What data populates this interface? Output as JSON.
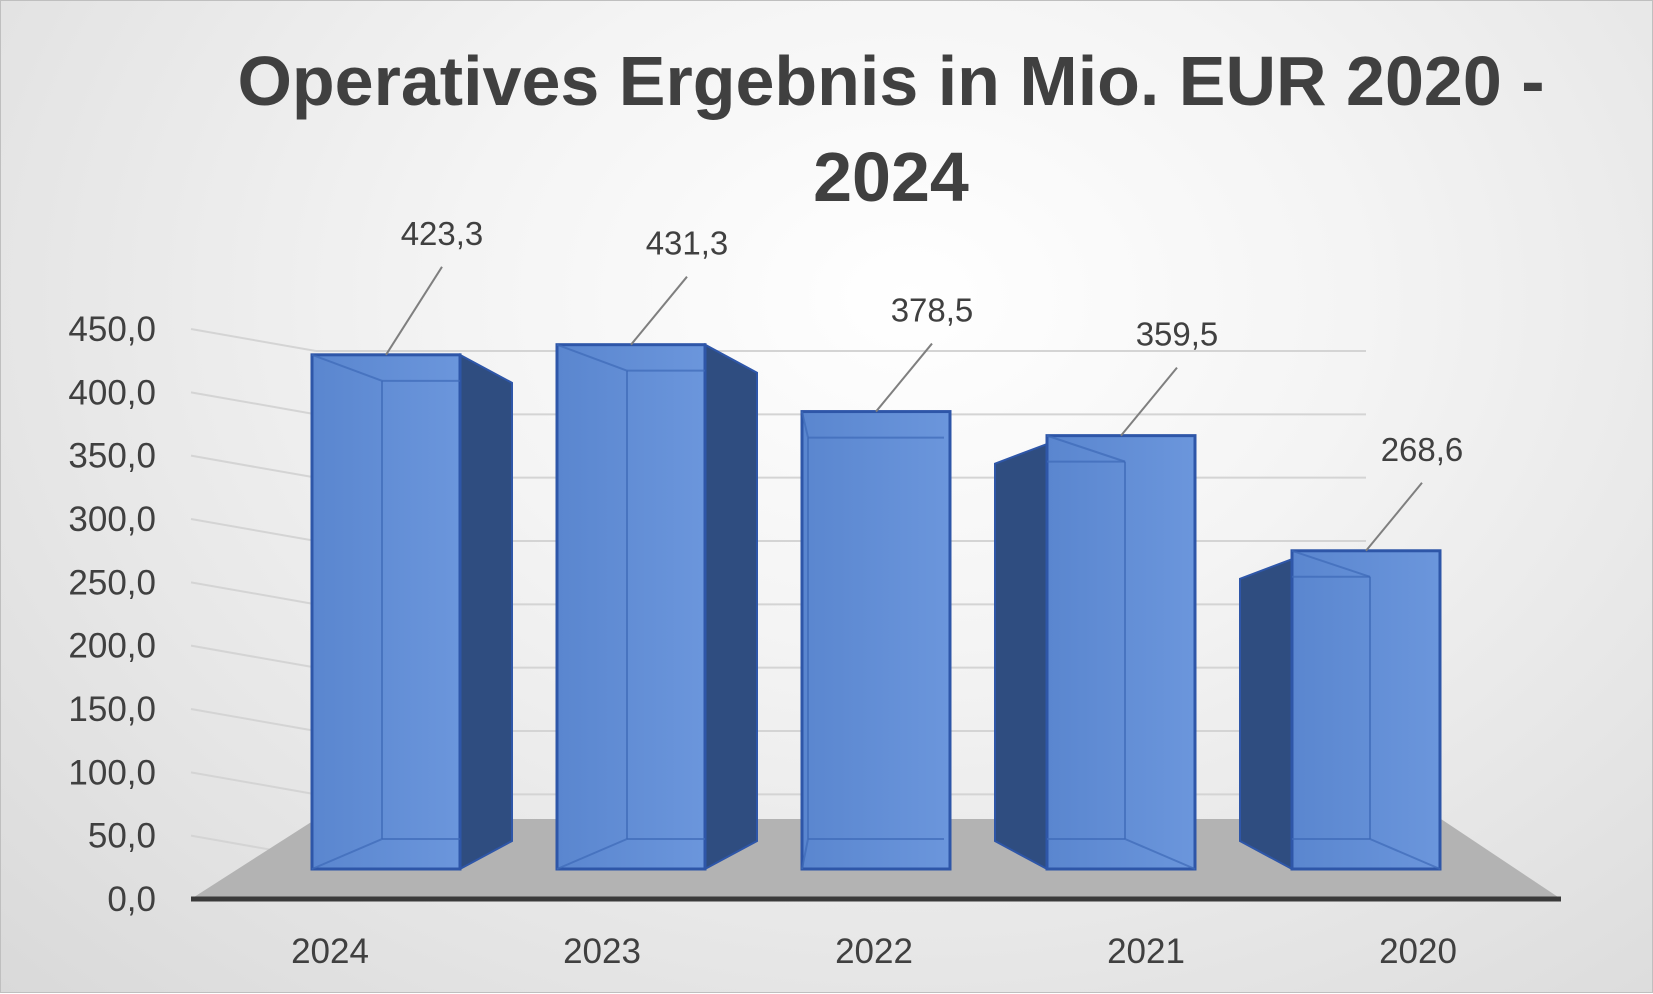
{
  "chart_data": {
    "type": "bar",
    "title": "Operatives Ergebnis in Mio. EUR 2020 - 2024",
    "categories": [
      "2024",
      "2023",
      "2022",
      "2021",
      "2020"
    ],
    "values": [
      423.3,
      431.3,
      378.5,
      359.5,
      268.6
    ],
    "data_labels": [
      "423,3",
      "431,3",
      "378,5",
      "359,5",
      "268,6"
    ],
    "y_ticks": [
      "0,0",
      "50,0",
      "100,0",
      "150,0",
      "200,0",
      "250,0",
      "300,0",
      "350,0",
      "400,0",
      "450,0"
    ],
    "ylim": [
      0,
      450
    ],
    "grid": true,
    "style": "3d-column",
    "colors": {
      "bar_front": "#5b87d0",
      "bar_side": "#2f4d80",
      "bar_edge": "#2e56a8",
      "floor": "#b3b3b3",
      "axis": "#3a3a3a",
      "text": "#404040"
    }
  }
}
